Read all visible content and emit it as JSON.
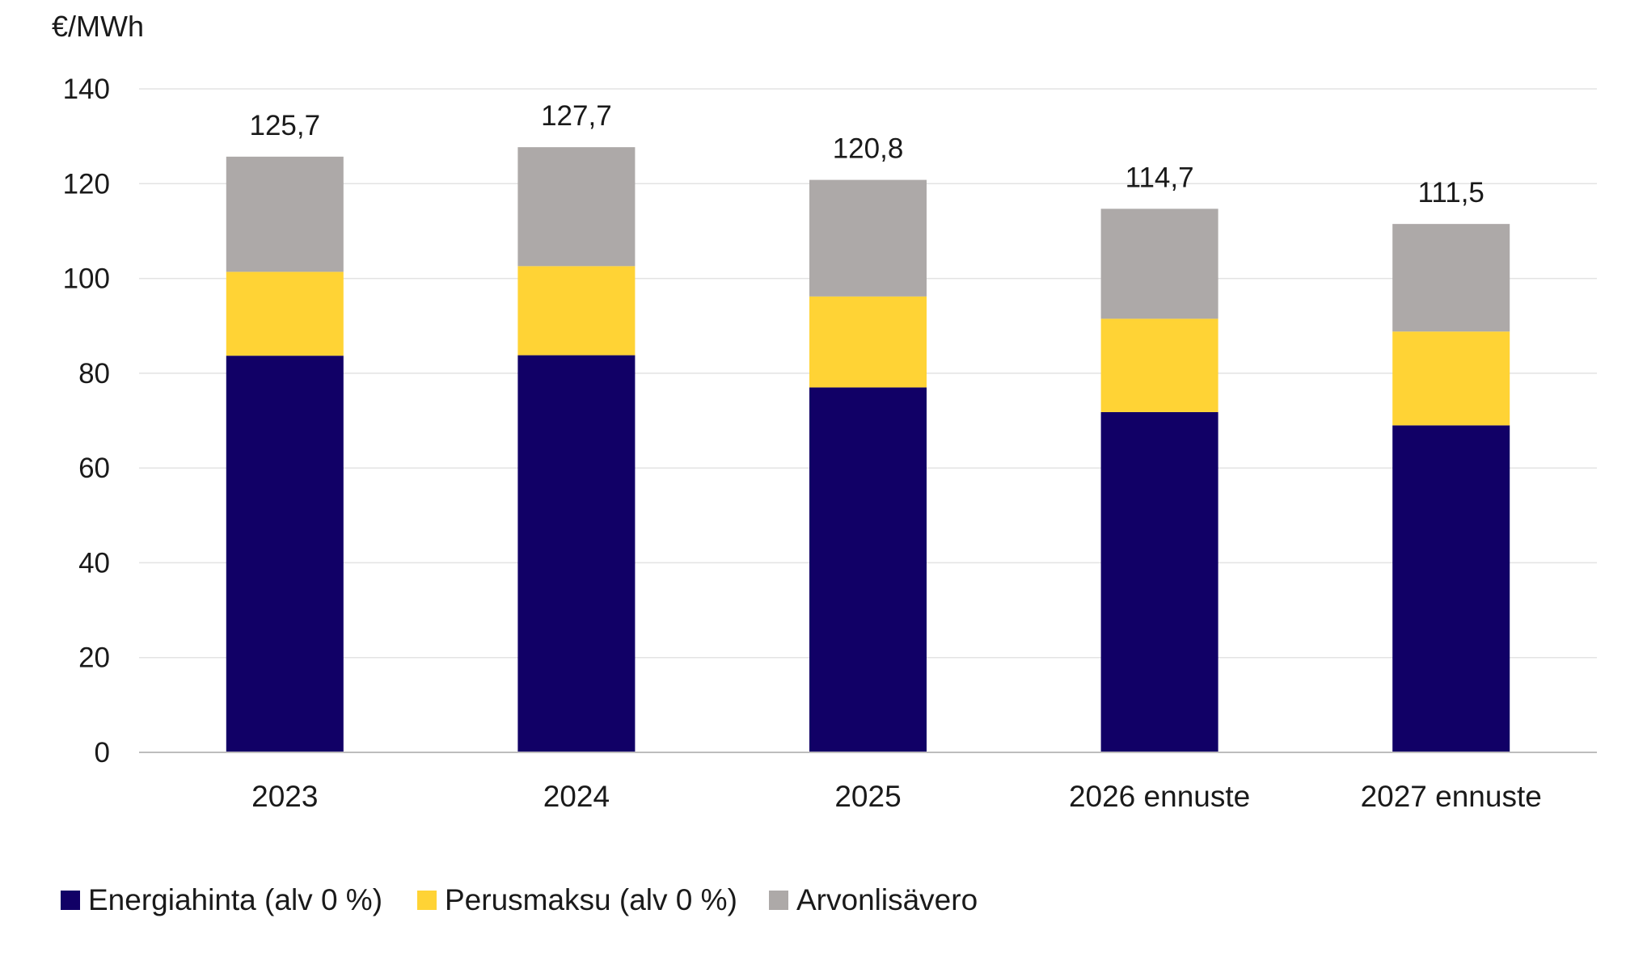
{
  "chart_data": {
    "type": "bar",
    "stacked": true,
    "unit_label": "€/MWh",
    "categories": [
      "2023",
      "2024",
      "2025",
      "2026 ennuste",
      "2027 ennuste"
    ],
    "series": [
      {
        "name": "Energiahinta (alv 0 %)",
        "color": "#110066",
        "values": [
          83.7,
          83.8,
          77.0,
          71.8,
          69.0
        ]
      },
      {
        "name": "Perusmaksu (alv 0 %)",
        "color": "#FFD335",
        "values": [
          17.7,
          18.8,
          19.2,
          19.7,
          19.8
        ]
      },
      {
        "name": "Arvonlisävero",
        "color": "#ADA9A8",
        "values": [
          24.3,
          25.1,
          24.6,
          23.2,
          22.7
        ]
      }
    ],
    "totals": [
      "125,7",
      "127,7",
      "120,8",
      "114,7",
      "111,5"
    ],
    "totals_values": [
      125.7,
      127.7,
      120.8,
      114.7,
      111.5
    ],
    "yticks": [
      0,
      20,
      40,
      60,
      80,
      100,
      120,
      140
    ],
    "ylim": [
      0,
      140
    ],
    "grid": true,
    "legend_position": "bottom-left"
  }
}
